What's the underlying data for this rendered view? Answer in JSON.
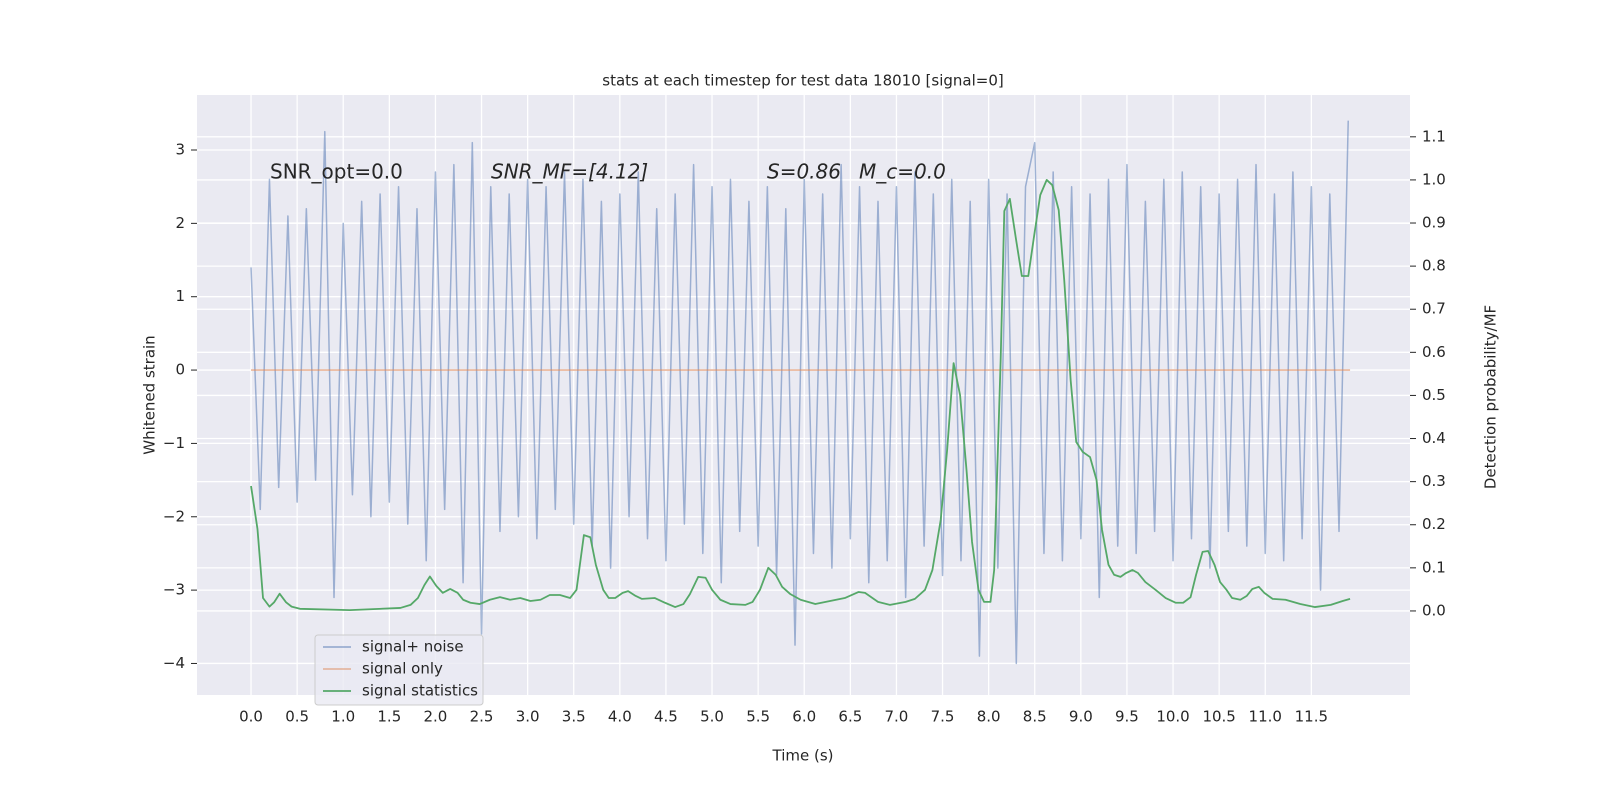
{
  "chart_data": {
    "type": "line",
    "title": "stats at each timestep for test data 18010 [signal=0]",
    "xlabel": "Time (s)",
    "ylabel": "Whitened strain",
    "y2label": "Detection probability/MF",
    "annotations": [
      "SNR_opt=0.0",
      "SNR_MF=[4.12]",
      "S=0.86",
      "M_c=0.0"
    ],
    "xlim": [
      -0.586,
      12.57
    ],
    "ylim": [
      -4.43,
      3.75
    ],
    "y2lim": [
      -0.195,
      1.197
    ],
    "xticks": [
      {
        "value": 0,
        "label": "0.0"
      },
      0.5,
      {
        "value": 1,
        "label": "1.0"
      },
      1.5,
      {
        "value": 2,
        "label": "2.0"
      },
      2.5,
      {
        "value": 3,
        "label": "3.0"
      },
      3.5,
      {
        "value": 4,
        "label": "4.0"
      },
      4.5,
      {
        "value": 5,
        "label": "5.0"
      },
      5.5,
      {
        "value": 6,
        "label": "6.0"
      },
      6.5,
      {
        "value": 7,
        "label": "7.0"
      },
      7.5,
      {
        "value": 8,
        "label": "8.0"
      },
      8.5,
      {
        "value": 9,
        "label": "9.0"
      },
      9.5,
      {
        "value": 10,
        "label": "10.0"
      },
      10.5,
      {
        "value": 11,
        "label": "11.0"
      },
      11.5
    ],
    "yticks": [
      3,
      2,
      1,
      0,
      {
        "value": -1,
        "label": "−1"
      },
      {
        "value": -2,
        "label": "−2"
      },
      {
        "value": -3,
        "label": "−3"
      },
      {
        "value": -4,
        "label": "−4"
      }
    ],
    "y2ticks": [
      {
        "value": 0,
        "label": "0.0"
      },
      0.1,
      0.2,
      0.3,
      0.4,
      0.5,
      0.6,
      0.7,
      0.8,
      0.9,
      {
        "value": 1,
        "label": "1.0"
      },
      1.1
    ],
    "grid": true,
    "legend": "lower left",
    "series": [
      {
        "name": "signal+ noise",
        "color": "#4c72b0",
        "x": [
          0,
          0.1,
          0.2,
          0.3,
          0.4,
          0.5,
          0.6,
          0.7,
          0.8,
          0.9,
          1,
          1.1,
          1.2,
          1.3,
          1.4,
          1.5,
          1.6,
          1.7,
          1.8,
          1.9,
          2,
          2.1,
          2.2,
          2.3,
          2.4,
          2.5,
          2.6,
          2.7,
          2.8,
          2.9,
          3,
          3.1,
          3.2,
          3.3,
          3.4,
          3.5,
          3.6,
          3.7,
          3.8,
          3.9,
          4,
          4.1,
          4.2,
          4.3,
          4.4,
          4.5,
          4.6,
          4.7,
          4.8,
          4.9,
          5,
          5.1,
          5.2,
          5.3,
          5.4,
          5.5,
          5.6,
          5.7,
          5.8,
          5.9,
          6,
          6.1,
          6.2,
          6.3,
          6.4,
          6.5,
          6.6,
          6.7,
          6.8,
          6.9,
          7,
          7.1,
          7.2,
          7.3,
          7.4,
          7.5,
          7.6,
          7.7,
          7.8,
          7.9,
          8,
          8.1,
          8.2,
          8.3,
          8.4,
          8.5,
          8.6,
          8.7,
          8.8,
          8.9,
          9,
          9.1,
          9.2,
          9.3,
          9.4,
          9.5,
          9.6,
          9.7,
          9.8,
          9.9,
          10,
          10.1,
          10.2,
          10.3,
          10.4,
          10.5,
          10.6,
          10.7,
          10.8,
          10.9,
          11,
          11.1,
          11.2,
          11.3,
          11.4,
          11.5,
          11.6,
          11.7,
          11.8,
          11.9
        ],
        "values": [
          1.4,
          -1.9,
          2.6,
          -1.6,
          2.1,
          -1.8,
          2.2,
          -1.5,
          3.25,
          -3.1,
          2.0,
          -1.7,
          2.3,
          -2.0,
          2.4,
          -1.8,
          2.5,
          -2.1,
          2.2,
          -2.6,
          2.7,
          -1.9,
          2.8,
          -2.9,
          3.1,
          -3.6,
          2.5,
          -2.2,
          2.4,
          -2.0,
          2.6,
          -2.3,
          2.5,
          -1.9,
          2.7,
          -2.1,
          2.6,
          -2.4,
          2.3,
          -2.7,
          2.4,
          -2.0,
          2.7,
          -2.3,
          2.2,
          -2.6,
          2.4,
          -2.1,
          2.8,
          -2.5,
          2.5,
          -2.9,
          2.6,
          -2.2,
          2.3,
          -2.4,
          2.5,
          -2.8,
          2.2,
          -3.75,
          2.6,
          -2.5,
          2.4,
          -2.7,
          2.8,
          -2.3,
          2.5,
          -2.9,
          2.3,
          -2.6,
          2.5,
          -3.1,
          2.7,
          -2.4,
          2.4,
          -2.8,
          2.6,
          -2.6,
          2.3,
          -3.9,
          2.6,
          -2.7,
          2.4,
          -4.0,
          2.5,
          3.1,
          -2.5,
          2.7,
          -2.6,
          2.5,
          -2.3,
          2.4,
          -3.1,
          2.6,
          -2.4,
          2.8,
          -2.5,
          2.3,
          -2.2,
          2.6,
          -2.6,
          2.7,
          -2.3,
          2.5,
          -2.7,
          2.4,
          -2.2,
          2.6,
          -2.4,
          2.8,
          -2.5,
          2.4,
          -2.6,
          2.7,
          -2.3,
          2.5,
          -3.0,
          2.4,
          -2.2,
          3.4
        ]
      },
      {
        "name": "signal only",
        "color": "#dd8452",
        "x": [
          0,
          11.92
        ],
        "values": [
          0,
          0
        ]
      },
      {
        "name": "signal statistics",
        "color": "#55a868",
        "axis": "y2",
        "x": [
          0,
          0.07,
          0.13,
          0.2,
          0.25,
          0.31,
          0.38,
          0.44,
          0.53,
          1.07,
          1.62,
          1.73,
          1.81,
          1.88,
          1.94,
          2.01,
          2.08,
          2.16,
          2.24,
          2.3,
          2.38,
          2.48,
          2.59,
          2.7,
          2.81,
          2.92,
          3.03,
          3.14,
          3.24,
          3.35,
          3.46,
          3.53,
          3.61,
          3.68,
          3.74,
          3.82,
          3.88,
          3.95,
          4.03,
          4.09,
          4.17,
          4.24,
          4.38,
          4.49,
          4.6,
          4.69,
          4.76,
          4.85,
          4.93,
          5,
          5.09,
          5.2,
          5.36,
          5.44,
          5.52,
          5.61,
          5.69,
          5.76,
          5.85,
          5.96,
          6.12,
          6.28,
          6.44,
          6.59,
          6.66,
          6.8,
          6.93,
          7.1,
          7.2,
          7.31,
          7.39,
          7.48,
          7.55,
          7.62,
          7.69,
          7.76,
          7.82,
          7.89,
          7.95,
          8.02,
          8.06,
          8.13,
          8.17,
          8.23,
          8.3,
          8.36,
          8.43,
          8.5,
          8.56,
          8.63,
          8.69,
          8.76,
          8.82,
          8.89,
          8.95,
          9.02,
          9.1,
          9.17,
          9.23,
          9.3,
          9.36,
          9.43,
          9.49,
          9.56,
          9.62,
          9.7,
          9.81,
          9.92,
          10.03,
          10.11,
          10.19,
          10.25,
          10.32,
          10.38,
          10.45,
          10.51,
          10.58,
          10.64,
          10.73,
          10.8,
          10.86,
          10.93,
          10.99,
          11.08,
          11.22,
          11.38,
          11.54,
          11.71,
          11.84,
          11.92
        ],
        "values": [
          0.29,
          0.19,
          0.03,
          0.01,
          0.02,
          0.04,
          0.02,
          0.01,
          0.005,
          0.002,
          0.007,
          0.014,
          0.03,
          0.06,
          0.08,
          0.058,
          0.042,
          0.051,
          0.042,
          0.026,
          0.019,
          0.016,
          0.026,
          0.032,
          0.026,
          0.03,
          0.023,
          0.026,
          0.037,
          0.037,
          0.03,
          0.049,
          0.176,
          0.171,
          0.107,
          0.049,
          0.03,
          0.03,
          0.042,
          0.046,
          0.035,
          0.028,
          0.03,
          0.019,
          0.009,
          0.016,
          0.039,
          0.079,
          0.077,
          0.049,
          0.026,
          0.016,
          0.014,
          0.021,
          0.049,
          0.1,
          0.084,
          0.056,
          0.039,
          0.026,
          0.016,
          0.023,
          0.03,
          0.044,
          0.042,
          0.021,
          0.014,
          0.021,
          0.028,
          0.049,
          0.095,
          0.211,
          0.374,
          0.575,
          0.501,
          0.327,
          0.16,
          0.049,
          0.021,
          0.021,
          0.095,
          0.58,
          0.928,
          0.956,
          0.858,
          0.777,
          0.777,
          0.88,
          0.965,
          1.0,
          0.988,
          0.93,
          0.767,
          0.534,
          0.392,
          0.369,
          0.357,
          0.304,
          0.188,
          0.107,
          0.084,
          0.079,
          0.088,
          0.095,
          0.088,
          0.067,
          0.049,
          0.03,
          0.019,
          0.019,
          0.032,
          0.084,
          0.137,
          0.139,
          0.107,
          0.067,
          0.049,
          0.03,
          0.026,
          0.035,
          0.051,
          0.056,
          0.042,
          0.028,
          0.026,
          0.016,
          0.009,
          0.014,
          0.023,
          0.028
        ]
      }
    ]
  }
}
